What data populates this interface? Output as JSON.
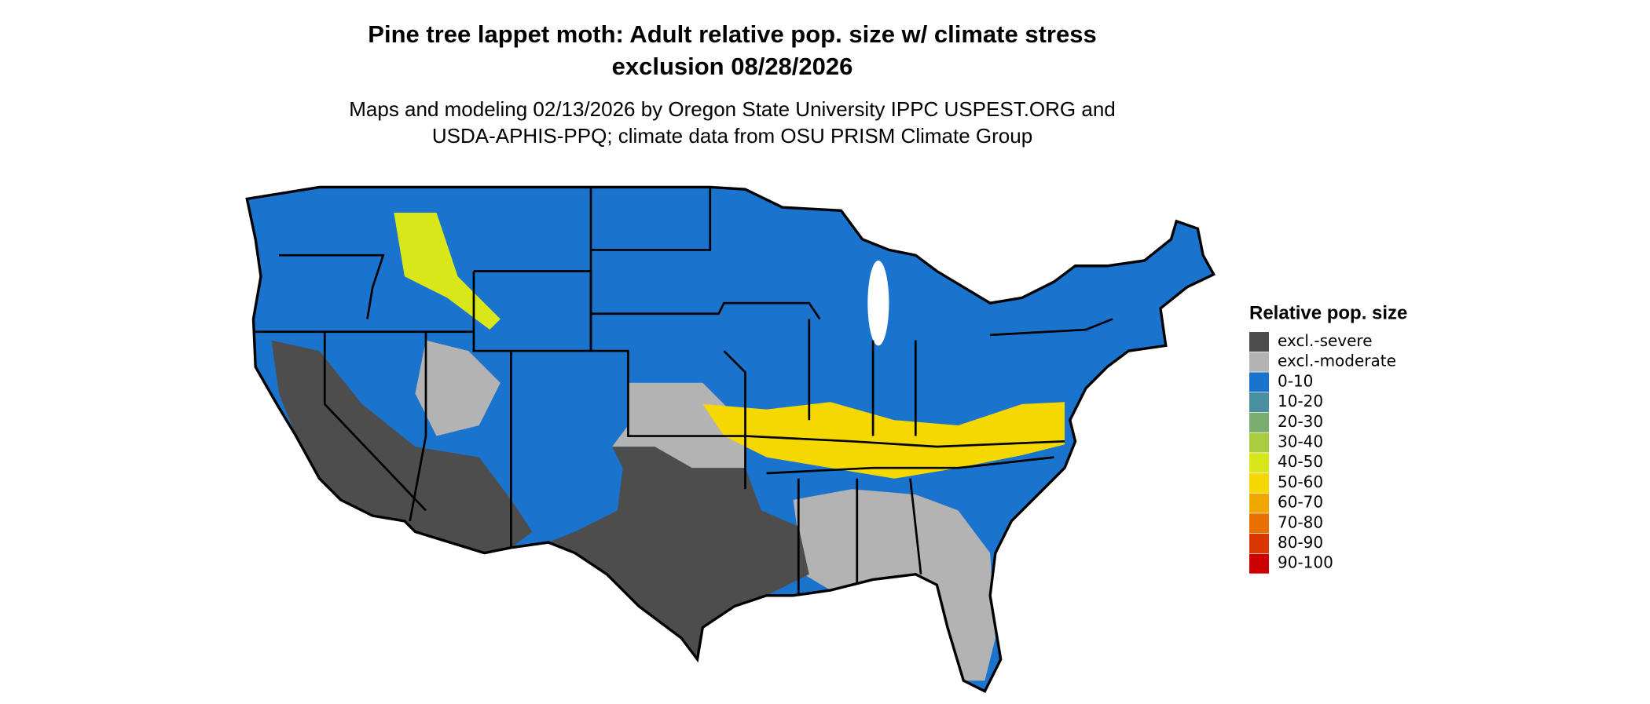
{
  "title": [
    "Pine tree lappet moth: Adult relative pop. size w/ climate stress",
    "exclusion 08/28/2026"
  ],
  "subtitle": [
    "Maps and modeling 02/13/2026 by Oregon State University IPPC USPEST.ORG and",
    "USDA-APHIS-PPQ; climate data from OSU PRISM Climate Group"
  ],
  "legend": {
    "title": "Relative pop. size",
    "items": [
      {
        "label": "excl.-severe",
        "color": "#4d4d4d"
      },
      {
        "label": "excl.-moderate",
        "color": "#b3b3b3"
      },
      {
        "label": "0-10",
        "color": "#1a73cc"
      },
      {
        "label": "10-20",
        "color": "#4a8fa0"
      },
      {
        "label": "20-30",
        "color": "#7aad6e"
      },
      {
        "label": "30-40",
        "color": "#a8cc3f"
      },
      {
        "label": "40-50",
        "color": "#d9e61a"
      },
      {
        "label": "50-60",
        "color": "#f5d800"
      },
      {
        "label": "60-70",
        "color": "#f0a800"
      },
      {
        "label": "70-80",
        "color": "#e87000"
      },
      {
        "label": "80-90",
        "color": "#d83800"
      },
      {
        "label": "90-100",
        "color": "#cc0000"
      }
    ]
  }
}
